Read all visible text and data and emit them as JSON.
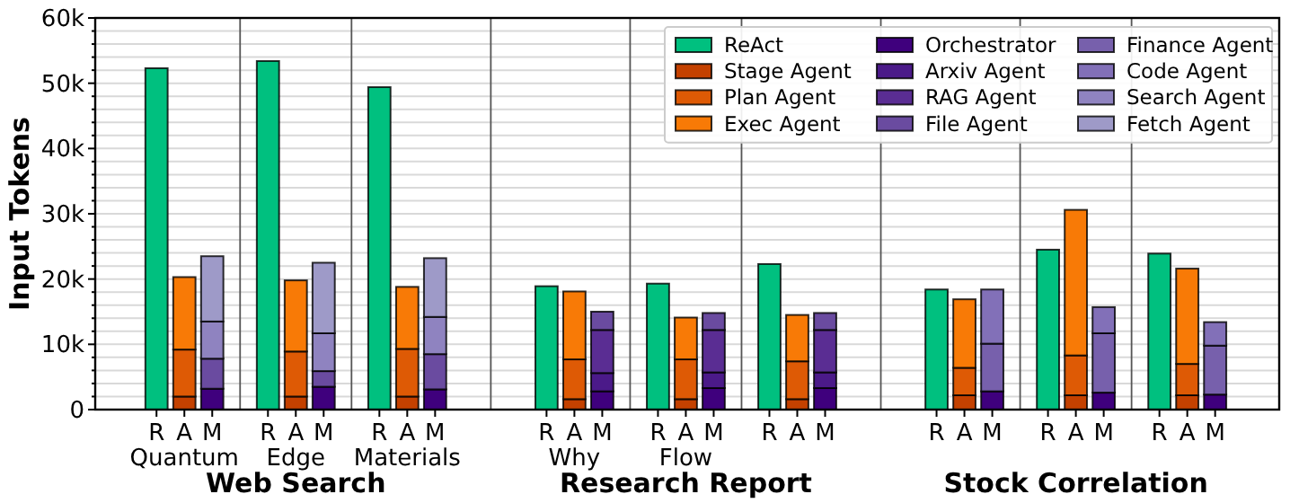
{
  "chart_data": {
    "type": "bar",
    "stacked": true,
    "ylabel": "Input Tokens",
    "categories": [
      "R",
      "A",
      "M",
      null,
      "R",
      "A",
      "M",
      null,
      "R",
      "A",
      "M",
      null,
      null,
      null,
      "R",
      "A",
      "M",
      null,
      "R",
      "A",
      "M",
      null,
      "R",
      "A",
      "M",
      null,
      null,
      null,
      "R",
      "A",
      "M",
      null,
      "R",
      "A",
      "M",
      null,
      "R",
      "A",
      "M"
    ],
    "series": [
      {
        "name": "ReAct",
        "color": "#00c07f",
        "values": [
          52300,
          null,
          null,
          null,
          53400,
          null,
          null,
          null,
          49400,
          null,
          null,
          null,
          null,
          null,
          18900,
          null,
          null,
          null,
          19300,
          null,
          null,
          null,
          22300,
          null,
          null,
          null,
          null,
          null,
          18400,
          null,
          null,
          null,
          24500,
          null,
          null,
          null,
          23900,
          null,
          null
        ]
      },
      {
        "name": "Stage Agent",
        "color": "#c44100",
        "values": [
          null,
          2000,
          null,
          null,
          null,
          2000,
          null,
          null,
          null,
          2000,
          null,
          null,
          null,
          null,
          null,
          1600,
          null,
          null,
          null,
          1600,
          null,
          null,
          null,
          1600,
          null,
          null,
          null,
          null,
          null,
          2200,
          null,
          null,
          null,
          2200,
          null,
          null,
          null,
          2200,
          null
        ]
      },
      {
        "name": "Plan Agent",
        "color": "#de5a05",
        "values": [
          null,
          7200,
          null,
          null,
          null,
          6900,
          null,
          null,
          null,
          7300,
          null,
          null,
          null,
          null,
          null,
          6100,
          null,
          null,
          null,
          6100,
          null,
          null,
          null,
          5800,
          null,
          null,
          null,
          null,
          null,
          4200,
          null,
          null,
          null,
          6100,
          null,
          null,
          null,
          4800,
          null
        ]
      },
      {
        "name": "Exec Agent",
        "color": "#f87a06",
        "values": [
          null,
          11100,
          null,
          null,
          null,
          10900,
          null,
          null,
          null,
          9500,
          null,
          null,
          null,
          null,
          null,
          10400,
          null,
          null,
          null,
          6400,
          null,
          null,
          null,
          7100,
          null,
          null,
          null,
          null,
          null,
          10500,
          null,
          null,
          null,
          22300,
          null,
          null,
          null,
          14600,
          null
        ]
      },
      {
        "name": "Orchestrator",
        "color": "#3f007d",
        "values": [
          null,
          null,
          3200,
          null,
          null,
          null,
          3500,
          null,
          null,
          null,
          3100,
          null,
          null,
          null,
          null,
          null,
          2800,
          null,
          null,
          null,
          3300,
          null,
          null,
          null,
          3300,
          null,
          null,
          null,
          null,
          null,
          2800,
          null,
          null,
          null,
          2600,
          null,
          null,
          null,
          2300
        ]
      },
      {
        "name": "Arxiv Agent",
        "color": "#4b1a89",
        "values": [
          null,
          null,
          null,
          null,
          null,
          null,
          null,
          null,
          null,
          null,
          null,
          null,
          null,
          null,
          null,
          null,
          2800,
          null,
          null,
          null,
          2400,
          null,
          null,
          null,
          2400,
          null,
          null,
          null,
          null,
          null,
          null,
          null,
          null,
          null,
          null,
          null,
          null,
          null,
          null
        ]
      },
      {
        "name": "RAG Agent",
        "color": "#5a2d93",
        "values": [
          null,
          null,
          null,
          null,
          null,
          null,
          null,
          null,
          null,
          null,
          null,
          null,
          null,
          null,
          null,
          null,
          6600,
          null,
          null,
          null,
          6500,
          null,
          null,
          null,
          6500,
          null,
          null,
          null,
          null,
          null,
          null,
          null,
          null,
          null,
          null,
          null,
          null,
          null,
          null
        ]
      },
      {
        "name": "File Agent",
        "color": "#6a4ba0",
        "values": [
          null,
          null,
          4600,
          null,
          null,
          null,
          2400,
          null,
          null,
          null,
          5400,
          null,
          null,
          null,
          null,
          null,
          2800,
          null,
          null,
          null,
          2600,
          null,
          null,
          null,
          2600,
          null,
          null,
          null,
          null,
          null,
          null,
          null,
          null,
          null,
          null,
          null,
          null,
          null,
          null
        ]
      },
      {
        "name": "Finance Agent",
        "color": "#7760ac",
        "values": [
          null,
          null,
          null,
          null,
          null,
          null,
          null,
          null,
          null,
          null,
          null,
          null,
          null,
          null,
          null,
          null,
          null,
          null,
          null,
          null,
          null,
          null,
          null,
          null,
          null,
          null,
          null,
          null,
          null,
          null,
          7300,
          null,
          null,
          null,
          9100,
          null,
          null,
          null,
          7500
        ]
      },
      {
        "name": "Code Agent",
        "color": "#8270b8",
        "values": [
          null,
          null,
          null,
          null,
          null,
          null,
          null,
          null,
          null,
          null,
          null,
          null,
          null,
          null,
          null,
          null,
          null,
          null,
          null,
          null,
          null,
          null,
          null,
          null,
          null,
          null,
          null,
          null,
          null,
          null,
          8300,
          null,
          null,
          null,
          4000,
          null,
          null,
          null,
          3600
        ]
      },
      {
        "name": "Search Agent",
        "color": "#8f83c0",
        "values": [
          null,
          null,
          5700,
          null,
          null,
          null,
          5800,
          null,
          null,
          null,
          5700,
          null,
          null,
          null,
          null,
          null,
          null,
          null,
          null,
          null,
          null,
          null,
          null,
          null,
          null,
          null,
          null,
          null,
          null,
          null,
          null,
          null,
          null,
          null,
          null,
          null,
          null,
          null,
          null
        ]
      },
      {
        "name": "Fetch Agent",
        "color": "#9e9ac8",
        "values": [
          null,
          null,
          10000,
          null,
          null,
          null,
          10800,
          null,
          null,
          null,
          9000,
          null,
          null,
          null,
          null,
          null,
          null,
          null,
          null,
          null,
          null,
          null,
          null,
          null,
          null,
          null,
          null,
          null,
          null,
          null,
          null,
          null,
          null,
          null,
          null,
          null,
          null,
          null,
          null
        ]
      }
    ],
    "ylim": [
      0,
      60000
    ],
    "yticks": [
      {
        "value": 0,
        "label": "0"
      },
      {
        "value": 2000,
        "label": null
      },
      {
        "value": 4000,
        "label": null
      },
      {
        "value": 6000,
        "label": null
      },
      {
        "value": 8000,
        "label": null
      },
      {
        "value": 10000,
        "label": "10k"
      },
      {
        "value": 12000,
        "label": null
      },
      {
        "value": 14000,
        "label": null
      },
      {
        "value": 16000,
        "label": null
      },
      {
        "value": 18000,
        "label": null
      },
      {
        "value": 20000,
        "label": "20k"
      },
      {
        "value": 22000,
        "label": null
      },
      {
        "value": 24000,
        "label": null
      },
      {
        "value": 26000,
        "label": null
      },
      {
        "value": 28000,
        "label": null
      },
      {
        "value": 30000,
        "label": "30k"
      },
      {
        "value": 32000,
        "label": null
      },
      {
        "value": 34000,
        "label": null
      },
      {
        "value": 36000,
        "label": null
      },
      {
        "value": 38000,
        "label": null
      },
      {
        "value": 40000,
        "label": "40k"
      },
      {
        "value": 42000,
        "label": null
      },
      {
        "value": 44000,
        "label": null
      },
      {
        "value": 46000,
        "label": null
      },
      {
        "value": 48000,
        "label": null
      },
      {
        "value": 50000,
        "label": "50k"
      },
      {
        "value": 52000,
        "label": null
      },
      {
        "value": 54000,
        "label": null
      },
      {
        "value": 56000,
        "label": null
      },
      {
        "value": 58000,
        "label": null
      },
      {
        "value": 60000,
        "label": "60k"
      }
    ],
    "grid": true,
    "legend": "top right",
    "annotations": [
      "Quantum",
      "Edge",
      "Materials",
      "Why",
      "Flow",
      null,
      null,
      null,
      null,
      "Web Search",
      "Research Report",
      "Stock Correlation"
    ]
  }
}
